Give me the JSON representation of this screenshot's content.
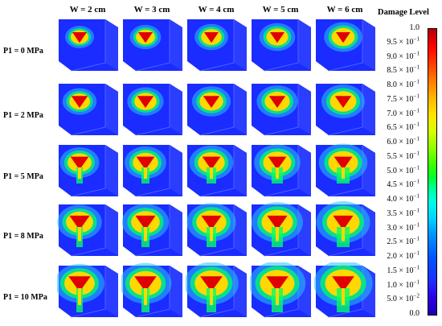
{
  "columns": [
    "W = 2 cm",
    "W = 3 cm",
    "W = 4 cm",
    "W = 5 cm",
    "W = 6 cm"
  ],
  "rows": [
    "P1 = 0 MPa",
    "P1 = 2 MPa",
    "P1 = 5 MPa",
    "P1 = 8 MPa",
    "P1 = 10 MPa"
  ],
  "legend": {
    "title": "Damage Level",
    "ticks": [
      {
        "base": "1.0",
        "exp": ""
      },
      {
        "base": "9.5 × 10",
        "exp": "−1"
      },
      {
        "base": "9.0 × 10",
        "exp": "−1"
      },
      {
        "base": "8.5 × 10",
        "exp": "−1"
      },
      {
        "base": "8.0 × 10",
        "exp": "−1"
      },
      {
        "base": "7.5 × 10",
        "exp": "−1"
      },
      {
        "base": "7.0 × 10",
        "exp": "−1"
      },
      {
        "base": "6.5 × 10",
        "exp": "−1"
      },
      {
        "base": "6.0 × 10",
        "exp": "−1"
      },
      {
        "base": "5.5 × 10",
        "exp": "−1"
      },
      {
        "base": "5.0 × 10",
        "exp": "−1"
      },
      {
        "base": "4.5 × 10",
        "exp": "−1"
      },
      {
        "base": "4.0 × 10",
        "exp": "−1"
      },
      {
        "base": "3.5 × 10",
        "exp": "−1"
      },
      {
        "base": "3.0 × 10",
        "exp": "−1"
      },
      {
        "base": "2.5 × 10",
        "exp": "−1"
      },
      {
        "base": "2.0 × 10",
        "exp": "−1"
      },
      {
        "base": "1.5 × 10",
        "exp": "−1"
      },
      {
        "base": "1.0 × 10",
        "exp": "−1"
      },
      {
        "base": "5.0 × 10",
        "exp": "−2"
      },
      {
        "base": "0.0",
        "exp": ""
      }
    ]
  },
  "colors": {
    "background": "#1a2cff",
    "damage_high": "#e00000",
    "damage_mid": "#ffd800",
    "damage_low": "#00ff66"
  }
}
